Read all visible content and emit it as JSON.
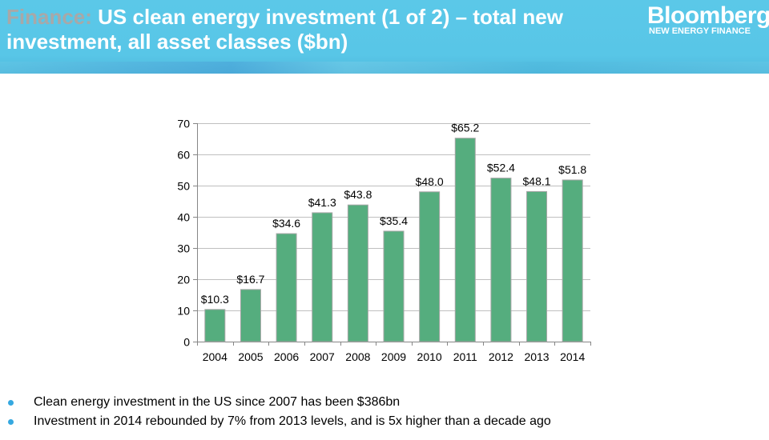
{
  "header": {
    "title_prefix": "Finance:",
    "title_main": " US clean energy investment (1 of 2) – total new investment, all asset classes ($bn)",
    "logo_brand": "Bloomberg",
    "logo_sub": "NEW ENERGY FINANCE"
  },
  "colors": {
    "bar_fill": "#55ad7e",
    "bar_stroke": "#a6a6a6",
    "grid": "#bfbfbf",
    "bullet": "#35a8e0",
    "header_bg": "#5bc8e8"
  },
  "chart_data": {
    "type": "bar",
    "title": "",
    "xlabel": "",
    "ylabel": "",
    "categories": [
      "2004",
      "2005",
      "2006",
      "2007",
      "2008",
      "2009",
      "2010",
      "2011",
      "2012",
      "2013",
      "2014"
    ],
    "values": [
      10.3,
      16.7,
      34.6,
      41.3,
      43.8,
      35.4,
      48.0,
      65.2,
      52.4,
      48.1,
      51.8
    ],
    "data_labels": [
      "$10.3",
      "$16.7",
      "$34.6",
      "$41.3",
      "$43.8",
      "$35.4",
      "$48.0",
      "$65.2",
      "$52.4",
      "$48.1",
      "$51.8"
    ],
    "ylim": [
      0,
      70
    ],
    "yticks": [
      0,
      10,
      20,
      30,
      40,
      50,
      60,
      70
    ],
    "grid": true,
    "legend": "none"
  },
  "bullets": [
    "Clean energy investment in the US since 2007 has been $386bn",
    "Investment in 2014 rebounded by 7% from 2013 levels, and is 5x higher than a decade ago"
  ]
}
